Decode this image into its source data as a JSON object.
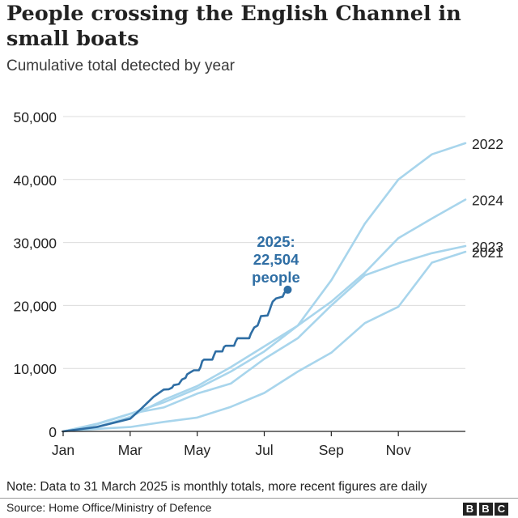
{
  "title": "People crossing the English Channel in small boats",
  "subtitle": "Cumulative total detected by year",
  "note": "Note: Data to 31 March 2025 is monthly totals, more recent figures are daily",
  "source": "Source: Home Office/Ministry of Defence",
  "logo": [
    "B",
    "B",
    "C"
  ],
  "chart_data": {
    "type": "line",
    "xlim": [
      0,
      12
    ],
    "ylim": [
      0,
      50000
    ],
    "y_ticks": [
      {
        "value": 0,
        "label": "0"
      },
      {
        "value": 10000,
        "label": "10,000"
      },
      {
        "value": 20000,
        "label": "20,000"
      },
      {
        "value": 30000,
        "label": "30,000"
      },
      {
        "value": 40000,
        "label": "40,000"
      },
      {
        "value": 50000,
        "label": "50,000"
      }
    ],
    "x_ticks": [
      {
        "value": 0,
        "label": "Jan"
      },
      {
        "value": 2,
        "label": "Mar"
      },
      {
        "value": 4,
        "label": "May"
      },
      {
        "value": 6,
        "label": "Jul"
      },
      {
        "value": 8,
        "label": "Sep"
      },
      {
        "value": 10,
        "label": "Nov"
      }
    ],
    "grid": true,
    "colors": {
      "past": "#a8d5ec",
      "current": "#2f6ea4",
      "grid": "#dcdcdc",
      "axis": "#222222",
      "text": "#222222"
    },
    "series": [
      {
        "name": "2022",
        "label": "2022",
        "points": [
          [
            0,
            0
          ],
          [
            1,
            1200
          ],
          [
            2,
            2800
          ],
          [
            3,
            4600
          ],
          [
            4,
            6800
          ],
          [
            5,
            9500
          ],
          [
            6,
            12700
          ],
          [
            7,
            16800
          ],
          [
            8,
            24000
          ],
          [
            9,
            33000
          ],
          [
            10,
            40000
          ],
          [
            11,
            44000
          ],
          [
            12,
            45774
          ]
        ]
      },
      {
        "name": "2024",
        "label": "2024",
        "points": [
          [
            0,
            0
          ],
          [
            1,
            700
          ],
          [
            2,
            2300
          ],
          [
            3,
            5000
          ],
          [
            4,
            7200
          ],
          [
            5,
            10200
          ],
          [
            6,
            13500
          ],
          [
            7,
            16800
          ],
          [
            8,
            20600
          ],
          [
            9,
            25200
          ],
          [
            10,
            30700
          ],
          [
            11,
            33800
          ],
          [
            12,
            36816
          ]
        ]
      },
      {
        "name": "2023",
        "label": "2023",
        "points": [
          [
            0,
            0
          ],
          [
            1,
            1100
          ],
          [
            2,
            2800
          ],
          [
            3,
            3800
          ],
          [
            4,
            6000
          ],
          [
            5,
            7600
          ],
          [
            6,
            11500
          ],
          [
            7,
            14800
          ],
          [
            8,
            20000
          ],
          [
            9,
            24800
          ],
          [
            10,
            26700
          ],
          [
            11,
            28300
          ],
          [
            12,
            29437
          ]
        ]
      },
      {
        "name": "2021",
        "label": "2021",
        "points": [
          [
            0,
            0
          ],
          [
            1,
            400
          ],
          [
            2,
            700
          ],
          [
            3,
            1500
          ],
          [
            4,
            2200
          ],
          [
            5,
            3900
          ],
          [
            6,
            6100
          ],
          [
            7,
            9500
          ],
          [
            8,
            12500
          ],
          [
            9,
            17200
          ],
          [
            10,
            19800
          ],
          [
            11,
            26800
          ],
          [
            12,
            28526
          ]
        ]
      },
      {
        "name": "2025",
        "label": "2025",
        "points": [
          [
            0,
            0
          ],
          [
            1,
            700
          ],
          [
            2,
            2000
          ],
          [
            2.35,
            3700
          ],
          [
            2.7,
            5500
          ],
          [
            3.0,
            6650
          ],
          [
            3.15,
            6700
          ],
          [
            3.25,
            6960
          ],
          [
            3.3,
            7350
          ],
          [
            3.45,
            7500
          ],
          [
            3.55,
            8250
          ],
          [
            3.65,
            8500
          ],
          [
            3.7,
            9060
          ],
          [
            3.8,
            9400
          ],
          [
            3.9,
            9700
          ],
          [
            4.05,
            9700
          ],
          [
            4.1,
            10230
          ],
          [
            4.15,
            11170
          ],
          [
            4.2,
            11400
          ],
          [
            4.45,
            11400
          ],
          [
            4.5,
            12100
          ],
          [
            4.55,
            12700
          ],
          [
            4.75,
            12700
          ],
          [
            4.8,
            13400
          ],
          [
            4.85,
            13600
          ],
          [
            5.1,
            13600
          ],
          [
            5.15,
            14300
          ],
          [
            5.2,
            14800
          ],
          [
            5.55,
            14800
          ],
          [
            5.6,
            15500
          ],
          [
            5.65,
            16000
          ],
          [
            5.7,
            16500
          ],
          [
            5.8,
            16800
          ],
          [
            5.85,
            17500
          ],
          [
            5.9,
            18300
          ],
          [
            6.1,
            18400
          ],
          [
            6.15,
            19100
          ],
          [
            6.2,
            19900
          ],
          [
            6.25,
            20600
          ],
          [
            6.35,
            21100
          ],
          [
            6.55,
            21400
          ],
          [
            6.6,
            22000
          ],
          [
            6.7,
            22504
          ]
        ]
      }
    ],
    "annotation": {
      "lines": [
        "2025:",
        "22,504",
        "people"
      ],
      "target": [
        6.7,
        22504
      ],
      "x": 6.35,
      "y": 29300
    }
  }
}
